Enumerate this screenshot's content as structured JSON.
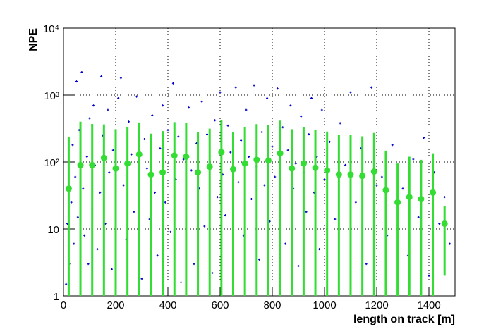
{
  "chart_data": {
    "type": "scatter",
    "x_label": "length on track [m]",
    "y_label": "NPE",
    "xlim": [
      0,
      1500
    ],
    "ylim": [
      1,
      10000
    ],
    "log_y": true,
    "grid": true,
    "xticks": [
      0,
      200,
      400,
      600,
      800,
      1000,
      1200,
      1400
    ],
    "yticks": [
      1,
      10,
      {
        "value": 100,
        "label": "10²"
      },
      {
        "value": 1000,
        "label": "10³"
      },
      {
        "value": 10000,
        "label": "10⁴"
      }
    ],
    "series": [
      {
        "color": "#0000cc",
        "x": [
          10,
          15,
          22,
          30,
          35,
          40,
          45,
          50,
          55,
          60,
          70,
          75,
          80,
          90,
          95,
          100,
          110,
          115,
          120,
          130,
          140,
          145,
          150,
          160,
          170,
          175,
          185,
          190,
          200,
          210,
          220,
          230,
          240,
          250,
          260,
          270,
          280,
          290,
          300,
          310,
          320,
          330,
          340,
          350,
          360,
          370,
          380,
          390,
          400,
          410,
          420,
          430,
          440,
          450,
          460,
          470,
          480,
          490,
          500,
          510,
          520,
          530,
          540,
          550,
          560,
          570,
          580,
          590,
          600,
          610,
          620,
          630,
          640,
          650,
          660,
          670,
          680,
          690,
          700,
          710,
          720,
          730,
          740,
          750,
          760,
          770,
          780,
          790,
          800,
          810,
          820,
          830,
          840,
          850,
          860,
          870,
          880,
          890,
          900,
          910,
          920,
          930,
          940,
          950,
          960,
          970,
          980,
          990,
          1000,
          1020,
          1040,
          1060,
          1080,
          1100,
          1120,
          1140,
          1160,
          1180,
          1200,
          1220,
          1240,
          1260,
          1280,
          1300,
          1320,
          1340,
          1360,
          1380,
          1400,
          1420,
          1440,
          1460,
          1480
        ],
        "values": [
          1.5,
          12,
          3,
          25,
          180,
          6,
          60,
          1600,
          15,
          300,
          2200,
          40,
          8,
          120,
          3,
          450,
          20,
          700,
          90,
          5,
          35,
          1900,
          250,
          12,
          600,
          70,
          2.5,
          150,
          30,
          900,
          1800,
          45,
          7,
          400,
          130,
          18,
          950,
          60,
          1.8,
          220,
          80,
          14,
          500,
          35,
          4,
          160,
          700,
          25,
          300,
          9,
          1500,
          55,
          240,
          1.6,
          110,
          20,
          650,
          75,
          3,
          190,
          40,
          800,
          11,
          260,
          95,
          2.2,
          420,
          30,
          1100,
          65,
          16,
          350,
          140,
          5,
          1300,
          50,
          210,
          8,
          600,
          120,
          28,
          1400,
          85,
          3.5,
          280,
          45,
          900,
          13,
          170,
          60,
          1250,
          22,
          330,
          6,
          150,
          700,
          40,
          95,
          2.8,
          480,
          70,
          18,
          260,
          900,
          35,
          120,
          5,
          600,
          55,
          200,
          14,
          380,
          90,
          1100,
          25,
          160,
          3,
          1300,
          45,
          60,
          8,
          180,
          20,
          40,
          4,
          110,
          15,
          230,
          2,
          70,
          12,
          30,
          6
        ]
      },
      {
        "color": "#33dd33",
        "x": [
          20,
          65,
          110,
          155,
          200,
          245,
          290,
          335,
          380,
          425,
          470,
          515,
          560,
          605,
          650,
          695,
          740,
          785,
          830,
          875,
          920,
          965,
          1010,
          1055,
          1100,
          1145,
          1190,
          1235,
          1280,
          1325,
          1370,
          1415,
          1460
        ],
        "values": [
          40,
          90,
          90,
          115,
          80,
          95,
          130,
          65,
          70,
          125,
          120,
          70,
          85,
          140,
          78,
          95,
          108,
          105,
          135,
          80,
          95,
          82,
          75,
          65,
          65,
          62,
          72,
          38,
          25,
          30,
          28,
          35,
          12
        ],
        "errors": [
          200,
          310,
          280,
          250,
          230,
          240,
          260,
          200,
          220,
          270,
          260,
          210,
          230,
          280,
          200,
          240,
          260,
          250,
          280,
          230,
          240,
          220,
          210,
          190,
          190,
          180,
          200,
          110,
          70,
          90,
          80,
          100,
          10
        ]
      }
    ]
  }
}
